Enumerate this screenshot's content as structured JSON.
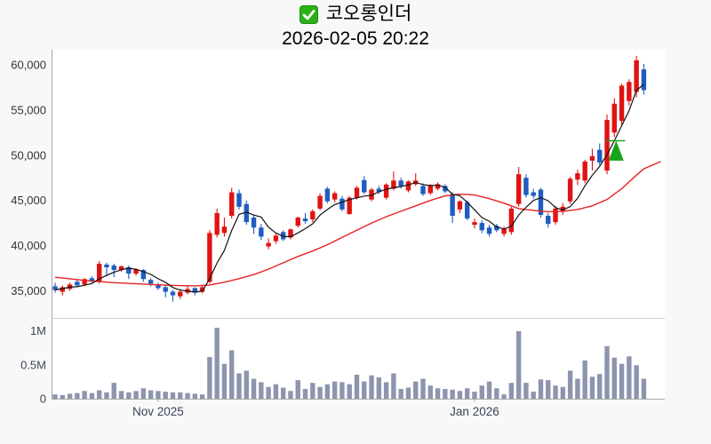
{
  "header": {
    "title": "코오롱인더",
    "subtitle": "2026-02-05 20:22"
  },
  "chart_data": {
    "type": "candlestick",
    "title": "코오롱인더",
    "timestamp_label": "2026-02-05 20:22",
    "legend_position": "none",
    "grid": false,
    "y_axis": {
      "ticks": [
        35000,
        40000,
        45000,
        50000,
        55000,
        60000
      ],
      "tick_labels": [
        "35,000",
        "40,000",
        "45,000",
        "50,000",
        "55,000",
        "60,000"
      ],
      "range": [
        32000,
        61700
      ]
    },
    "volume_axis": {
      "ticks": [
        0,
        500000,
        1000000
      ],
      "tick_labels": [
        "0",
        "0.5M",
        "1M"
      ],
      "range": [
        0,
        1190000
      ]
    },
    "x_ticks": [
      {
        "index": 14,
        "label": "Nov 2025"
      },
      {
        "index": 57,
        "label": "Jan 2026"
      }
    ],
    "candles_legend": "entries are [open, high, low, close, volume]",
    "candles": [
      [
        35500,
        35900,
        34800,
        35100,
        70000
      ],
      [
        34900,
        35600,
        34500,
        35400,
        60000
      ],
      [
        35200,
        35900,
        35000,
        35700,
        80000
      ],
      [
        36000,
        36200,
        35400,
        35600,
        90000
      ],
      [
        35700,
        36400,
        35500,
        36300,
        120000
      ],
      [
        36400,
        36600,
        35900,
        36050,
        90000
      ],
      [
        36000,
        38300,
        35800,
        38000,
        130000
      ],
      [
        37900,
        38100,
        36600,
        37600,
        100000
      ],
      [
        37800,
        38000,
        36500,
        37300,
        240000
      ],
      [
        37300,
        37800,
        37100,
        37700,
        120000
      ],
      [
        37600,
        37800,
        36300,
        36900,
        100000
      ],
      [
        36900,
        37500,
        36700,
        37400,
        120000
      ],
      [
        37300,
        37400,
        36000,
        36300,
        160000
      ],
      [
        36200,
        36400,
        35500,
        35800,
        130000
      ],
      [
        35600,
        35900,
        35100,
        35300,
        120000
      ],
      [
        35400,
        35600,
        34300,
        34900,
        110000
      ],
      [
        34900,
        35100,
        33800,
        34500,
        100000
      ],
      [
        34400,
        35200,
        34100,
        34900,
        100000
      ],
      [
        34800,
        35500,
        34600,
        35200,
        90000
      ],
      [
        35300,
        35400,
        34500,
        34800,
        80000
      ],
      [
        34900,
        35600,
        34700,
        35400,
        70000
      ],
      [
        36000,
        41700,
        35800,
        41400,
        620000
      ],
      [
        41200,
        44100,
        40900,
        43600,
        1050000
      ],
      [
        41400,
        43100,
        41000,
        42100,
        520000
      ],
      [
        43300,
        46400,
        43000,
        45900,
        720000
      ],
      [
        45800,
        46200,
        44000,
        44300,
        380000
      ],
      [
        44600,
        45000,
        42300,
        42600,
        420000
      ],
      [
        43100,
        43400,
        41300,
        42000,
        300000
      ],
      [
        42000,
        42400,
        40600,
        41000,
        250000
      ],
      [
        39900,
        40800,
        39600,
        40300,
        180000
      ],
      [
        40500,
        41300,
        40200,
        41100,
        220000
      ],
      [
        41500,
        41700,
        40500,
        40700,
        170000
      ],
      [
        40900,
        41900,
        40700,
        41800,
        120000
      ],
      [
        42200,
        43200,
        42000,
        43100,
        280000
      ],
      [
        43000,
        43600,
        42400,
        42700,
        150000
      ],
      [
        42900,
        44000,
        42600,
        43800,
        240000
      ],
      [
        44100,
        45800,
        43900,
        45500,
        180000
      ],
      [
        46300,
        46500,
        44700,
        44900,
        220000
      ],
      [
        45100,
        46000,
        44800,
        45800,
        260000
      ],
      [
        45200,
        45500,
        43800,
        44000,
        250000
      ],
      [
        43500,
        45500,
        43400,
        45300,
        220000
      ],
      [
        45300,
        46600,
        45100,
        46400,
        360000
      ],
      [
        47250,
        47700,
        45700,
        45900,
        260000
      ],
      [
        45100,
        46400,
        44900,
        46200,
        350000
      ],
      [
        46300,
        46600,
        45700,
        45950,
        320000
      ],
      [
        45300,
        46900,
        45100,
        46750,
        250000
      ],
      [
        46300,
        48200,
        46100,
        47200,
        380000
      ],
      [
        47200,
        47500,
        46300,
        46600,
        150000
      ],
      [
        46100,
        47200,
        45900,
        47100,
        170000
      ],
      [
        46800,
        48000,
        46600,
        47200,
        260000
      ],
      [
        46600,
        46900,
        45500,
        45700,
        300000
      ],
      [
        45800,
        46800,
        45600,
        46600,
        200000
      ],
      [
        46300,
        47000,
        46100,
        46800,
        160000
      ],
      [
        46600,
        46800,
        45800,
        46000,
        150000
      ],
      [
        45700,
        45900,
        42500,
        43300,
        140000
      ],
      [
        44000,
        45000,
        43600,
        44900,
        120000
      ],
      [
        44800,
        45000,
        42800,
        43000,
        160000
      ],
      [
        42300,
        43000,
        41900,
        42600,
        110000
      ],
      [
        42500,
        42800,
        41400,
        41700,
        200000
      ],
      [
        42000,
        42300,
        41000,
        41300,
        260000
      ],
      [
        42200,
        42400,
        41500,
        41700,
        160000
      ],
      [
        41300,
        42100,
        41000,
        41900,
        70000
      ],
      [
        41500,
        44300,
        41200,
        44100,
        240000
      ],
      [
        44600,
        48700,
        44300,
        47900,
        1000000
      ],
      [
        47500,
        47900,
        45300,
        45600,
        240000
      ],
      [
        45900,
        46300,
        45200,
        45500,
        110000
      ],
      [
        46200,
        46400,
        43100,
        43400,
        290000
      ],
      [
        43300,
        43600,
        42000,
        42400,
        280000
      ],
      [
        42600,
        44400,
        42300,
        44100,
        200000
      ],
      [
        43800,
        44700,
        43400,
        44300,
        180000
      ],
      [
        44900,
        47600,
        44600,
        47400,
        420000
      ],
      [
        47300,
        48400,
        46700,
        48000,
        300000
      ],
      [
        47200,
        49500,
        46900,
        49300,
        570000
      ],
      [
        49400,
        50700,
        48300,
        49900,
        330000
      ],
      [
        50600,
        51300,
        48900,
        49200,
        370000
      ],
      [
        48300,
        54500,
        47900,
        53900,
        780000
      ],
      [
        52500,
        56300,
        52000,
        55700,
        610000
      ],
      [
        53800,
        57900,
        53300,
        57700,
        520000
      ],
      [
        56000,
        58400,
        55500,
        58100,
        630000
      ],
      [
        57000,
        61000,
        56400,
        60500,
        500000
      ],
      [
        59500,
        60100,
        56700,
        57200,
        300000
      ]
    ],
    "moving_averages": [
      {
        "name": "ma-fast",
        "color": "#111111",
        "window": 5
      },
      {
        "name": "ma-slow",
        "color": "#e62222",
        "points": [
          [
            0,
            36500
          ],
          [
            4,
            36150
          ],
          [
            8,
            35900
          ],
          [
            12,
            35750
          ],
          [
            16,
            35600
          ],
          [
            19,
            35550
          ],
          [
            21,
            35650
          ],
          [
            23,
            35950
          ],
          [
            25,
            36350
          ],
          [
            27,
            36800
          ],
          [
            29,
            37400
          ],
          [
            31,
            38100
          ],
          [
            33,
            38800
          ],
          [
            35,
            39400
          ],
          [
            37,
            40100
          ],
          [
            39,
            40900
          ],
          [
            41,
            41700
          ],
          [
            43,
            42500
          ],
          [
            45,
            43200
          ],
          [
            47,
            43800
          ],
          [
            49,
            44400
          ],
          [
            51,
            45000
          ],
          [
            53,
            45500
          ],
          [
            55,
            45700
          ],
          [
            57,
            45600
          ],
          [
            59,
            45200
          ],
          [
            61,
            44700
          ],
          [
            63,
            44100
          ],
          [
            65,
            43900
          ],
          [
            67,
            43750
          ],
          [
            69,
            43800
          ],
          [
            71,
            44000
          ],
          [
            73,
            44400
          ],
          [
            75,
            45100
          ],
          [
            77,
            46300
          ],
          [
            79,
            47800
          ],
          [
            80,
            48500
          ],
          [
            82.3,
            49300
          ]
        ]
      }
    ],
    "marker": {
      "type": "triangle-up",
      "index": 76,
      "apex_value": 51600,
      "base_value": 49400,
      "line_value": 51600,
      "color": "#17a317"
    },
    "colors": {
      "up": "#e01212",
      "down": "#1f5dc0",
      "volume_bar": "#8d95ae",
      "axis_line": "#a8a8a8",
      "panel_divider": "#cfcfcf",
      "price_label": "#333333",
      "volume_label": "#3c4358",
      "x_label": "#3c4358",
      "plot_background": "#ffffff",
      "page_background": "#f8f8f8",
      "check_icon": "#2cb01a"
    }
  }
}
